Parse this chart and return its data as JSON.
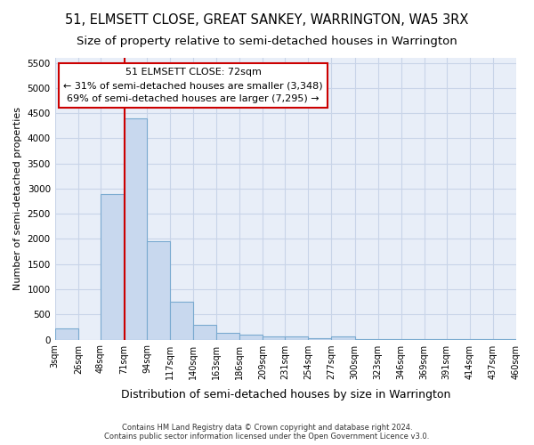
{
  "title": "51, ELMSETT CLOSE, GREAT SANKEY, WARRINGTON, WA5 3RX",
  "subtitle": "Size of property relative to semi-detached houses in Warrington",
  "xlabel": "Distribution of semi-detached houses by size in Warrington",
  "ylabel": "Number of semi-detached properties",
  "bin_edges": [
    3,
    26,
    48,
    71,
    94,
    117,
    140,
    163,
    186,
    209,
    231,
    254,
    277,
    300,
    323,
    346,
    369,
    391,
    414,
    437,
    460
  ],
  "bar_heights": [
    230,
    0,
    2900,
    4400,
    1950,
    750,
    290,
    135,
    100,
    60,
    55,
    30,
    60,
    5,
    5,
    5,
    5,
    5,
    5,
    5
  ],
  "bar_color": "#c8d8ee",
  "bar_edge_color": "#7aaad0",
  "property_size": 72,
  "property_line_color": "#cc0000",
  "annotation_text": "51 ELMSETT CLOSE: 72sqm\n← 31% of semi-detached houses are smaller (3,348)\n69% of semi-detached houses are larger (7,295) →",
  "annotation_box_color": "#ffffff",
  "annotation_box_edge_color": "#cc0000",
  "ylim": [
    0,
    5600
  ],
  "yticks": [
    0,
    500,
    1000,
    1500,
    2000,
    2500,
    3000,
    3500,
    4000,
    4500,
    5000,
    5500
  ],
  "background_color": "#ffffff",
  "plot_bg_color": "#e8eef8",
  "grid_color": "#c8d4e8",
  "footer": "Contains HM Land Registry data © Crown copyright and database right 2024.\nContains public sector information licensed under the Open Government Licence v3.0.",
  "title_fontsize": 10.5,
  "subtitle_fontsize": 9.5,
  "xlabel_fontsize": 9,
  "ylabel_fontsize": 8,
  "annot_fontsize": 8
}
